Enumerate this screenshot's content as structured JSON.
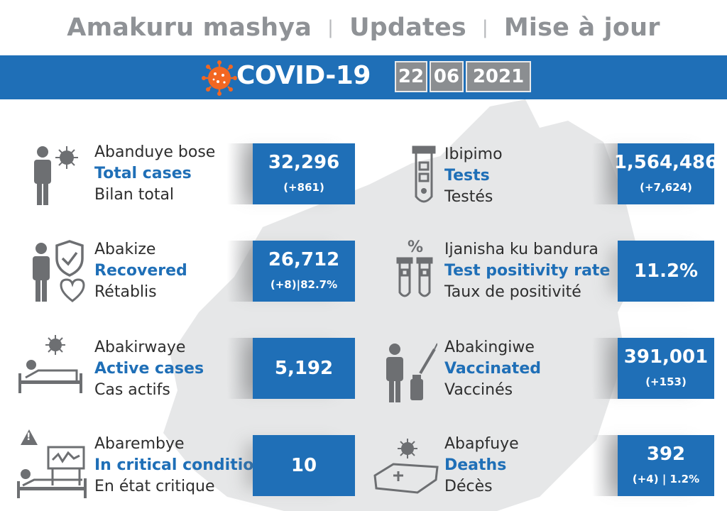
{
  "header": {
    "kinyarwanda": "Amakuru mashya",
    "english": "Updates",
    "french": "Mise à jour",
    "separator": "|"
  },
  "banner": {
    "title": "COVID-19",
    "date": {
      "day": "22",
      "month": "06",
      "year": "2021"
    }
  },
  "colors": {
    "banner": "#1f6fb7",
    "virus": "#f26722",
    "icon_gray": "#6d6f72",
    "heading_gray": "#8f9296"
  },
  "stats": {
    "total_cases": {
      "rw": "Abanduye bose",
      "en": "Total cases",
      "fr": "Bilan total",
      "value": "32,296",
      "delta": "(+861)",
      "icon": "person-virus-icon"
    },
    "tests": {
      "rw": "Ibipimo",
      "en": "Tests",
      "fr": "Testés",
      "value": "1,564,486",
      "delta": "(+7,624)",
      "icon": "test-tube-icon"
    },
    "recovered": {
      "rw": "Abakize",
      "en": "Recovered",
      "fr": "Rétablis",
      "value": "26,712",
      "delta": "(+8)|82.7%",
      "icon": "person-shield-icon"
    },
    "positivity": {
      "rw": "Ijanisha ku bandura",
      "en": "Test positivity rate",
      "fr": "Taux de positivité",
      "value": "11.2%",
      "icon": "test-tubes-percent-icon",
      "symbol": "%"
    },
    "active": {
      "rw": "Abakirwaye",
      "en": "Active cases",
      "fr": "Cas actifs",
      "value": "5,192",
      "icon": "patient-bed-icon"
    },
    "vaccinated": {
      "rw": "Abakingiwe",
      "en": "Vaccinated",
      "fr": "Vaccinés",
      "value": "391,001",
      "delta": "(+153)",
      "icon": "person-syringe-icon"
    },
    "critical": {
      "rw": "Abarembye",
      "en": "In critical condition",
      "fr": "En état critique",
      "value": "10",
      "icon": "icu-bed-icon",
      "warning": "!"
    },
    "deaths": {
      "rw": "Abapfuye",
      "en": "Deaths",
      "fr": "Décès",
      "value": "392",
      "delta": "(+4) | 1.2%",
      "icon": "coffin-icon"
    }
  }
}
